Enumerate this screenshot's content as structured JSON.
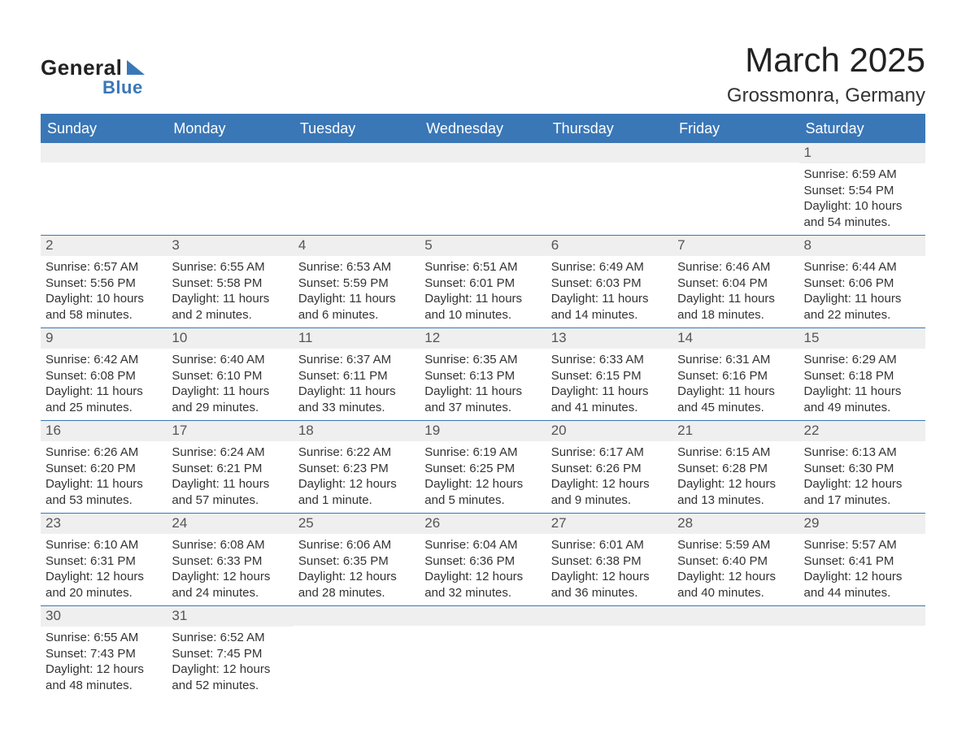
{
  "logo": {
    "text1": "General",
    "text2": "Blue"
  },
  "title": "March 2025",
  "location": "Grossmonra, Germany",
  "colors": {
    "brand_blue": "#3a77b7",
    "header_row_bg": "#efefef",
    "text": "#333333",
    "page_bg": "#ffffff"
  },
  "layout": {
    "columns": 7,
    "weeks": 6,
    "daynum_bg": "#efefef",
    "week_divider_color": "#3a77b7"
  },
  "weekdays": [
    "Sunday",
    "Monday",
    "Tuesday",
    "Wednesday",
    "Thursday",
    "Friday",
    "Saturday"
  ],
  "labels": {
    "sunrise": "Sunrise:",
    "sunset": "Sunset:",
    "daylight": "Daylight:"
  },
  "weeks": [
    [
      {
        "day": "",
        "sunrise": "",
        "sunset": "",
        "daylight": ""
      },
      {
        "day": "",
        "sunrise": "",
        "sunset": "",
        "daylight": ""
      },
      {
        "day": "",
        "sunrise": "",
        "sunset": "",
        "daylight": ""
      },
      {
        "day": "",
        "sunrise": "",
        "sunset": "",
        "daylight": ""
      },
      {
        "day": "",
        "sunrise": "",
        "sunset": "",
        "daylight": ""
      },
      {
        "day": "",
        "sunrise": "",
        "sunset": "",
        "daylight": ""
      },
      {
        "day": "1",
        "sunrise": "6:59 AM",
        "sunset": "5:54 PM",
        "daylight": "10 hours and 54 minutes."
      }
    ],
    [
      {
        "day": "2",
        "sunrise": "6:57 AM",
        "sunset": "5:56 PM",
        "daylight": "10 hours and 58 minutes."
      },
      {
        "day": "3",
        "sunrise": "6:55 AM",
        "sunset": "5:58 PM",
        "daylight": "11 hours and 2 minutes."
      },
      {
        "day": "4",
        "sunrise": "6:53 AM",
        "sunset": "5:59 PM",
        "daylight": "11 hours and 6 minutes."
      },
      {
        "day": "5",
        "sunrise": "6:51 AM",
        "sunset": "6:01 PM",
        "daylight": "11 hours and 10 minutes."
      },
      {
        "day": "6",
        "sunrise": "6:49 AM",
        "sunset": "6:03 PM",
        "daylight": "11 hours and 14 minutes."
      },
      {
        "day": "7",
        "sunrise": "6:46 AM",
        "sunset": "6:04 PM",
        "daylight": "11 hours and 18 minutes."
      },
      {
        "day": "8",
        "sunrise": "6:44 AM",
        "sunset": "6:06 PM",
        "daylight": "11 hours and 22 minutes."
      }
    ],
    [
      {
        "day": "9",
        "sunrise": "6:42 AM",
        "sunset": "6:08 PM",
        "daylight": "11 hours and 25 minutes."
      },
      {
        "day": "10",
        "sunrise": "6:40 AM",
        "sunset": "6:10 PM",
        "daylight": "11 hours and 29 minutes."
      },
      {
        "day": "11",
        "sunrise": "6:37 AM",
        "sunset": "6:11 PM",
        "daylight": "11 hours and 33 minutes."
      },
      {
        "day": "12",
        "sunrise": "6:35 AM",
        "sunset": "6:13 PM",
        "daylight": "11 hours and 37 minutes."
      },
      {
        "day": "13",
        "sunrise": "6:33 AM",
        "sunset": "6:15 PM",
        "daylight": "11 hours and 41 minutes."
      },
      {
        "day": "14",
        "sunrise": "6:31 AM",
        "sunset": "6:16 PM",
        "daylight": "11 hours and 45 minutes."
      },
      {
        "day": "15",
        "sunrise": "6:29 AM",
        "sunset": "6:18 PM",
        "daylight": "11 hours and 49 minutes."
      }
    ],
    [
      {
        "day": "16",
        "sunrise": "6:26 AM",
        "sunset": "6:20 PM",
        "daylight": "11 hours and 53 minutes."
      },
      {
        "day": "17",
        "sunrise": "6:24 AM",
        "sunset": "6:21 PM",
        "daylight": "11 hours and 57 minutes."
      },
      {
        "day": "18",
        "sunrise": "6:22 AM",
        "sunset": "6:23 PM",
        "daylight": "12 hours and 1 minute."
      },
      {
        "day": "19",
        "sunrise": "6:19 AM",
        "sunset": "6:25 PM",
        "daylight": "12 hours and 5 minutes."
      },
      {
        "day": "20",
        "sunrise": "6:17 AM",
        "sunset": "6:26 PM",
        "daylight": "12 hours and 9 minutes."
      },
      {
        "day": "21",
        "sunrise": "6:15 AM",
        "sunset": "6:28 PM",
        "daylight": "12 hours and 13 minutes."
      },
      {
        "day": "22",
        "sunrise": "6:13 AM",
        "sunset": "6:30 PM",
        "daylight": "12 hours and 17 minutes."
      }
    ],
    [
      {
        "day": "23",
        "sunrise": "6:10 AM",
        "sunset": "6:31 PM",
        "daylight": "12 hours and 20 minutes."
      },
      {
        "day": "24",
        "sunrise": "6:08 AM",
        "sunset": "6:33 PM",
        "daylight": "12 hours and 24 minutes."
      },
      {
        "day": "25",
        "sunrise": "6:06 AM",
        "sunset": "6:35 PM",
        "daylight": "12 hours and 28 minutes."
      },
      {
        "day": "26",
        "sunrise": "6:04 AM",
        "sunset": "6:36 PM",
        "daylight": "12 hours and 32 minutes."
      },
      {
        "day": "27",
        "sunrise": "6:01 AM",
        "sunset": "6:38 PM",
        "daylight": "12 hours and 36 minutes."
      },
      {
        "day": "28",
        "sunrise": "5:59 AM",
        "sunset": "6:40 PM",
        "daylight": "12 hours and 40 minutes."
      },
      {
        "day": "29",
        "sunrise": "5:57 AM",
        "sunset": "6:41 PM",
        "daylight": "12 hours and 44 minutes."
      }
    ],
    [
      {
        "day": "30",
        "sunrise": "6:55 AM",
        "sunset": "7:43 PM",
        "daylight": "12 hours and 48 minutes."
      },
      {
        "day": "31",
        "sunrise": "6:52 AM",
        "sunset": "7:45 PM",
        "daylight": "12 hours and 52 minutes."
      },
      {
        "day": "",
        "sunrise": "",
        "sunset": "",
        "daylight": ""
      },
      {
        "day": "",
        "sunrise": "",
        "sunset": "",
        "daylight": ""
      },
      {
        "day": "",
        "sunrise": "",
        "sunset": "",
        "daylight": ""
      },
      {
        "day": "",
        "sunrise": "",
        "sunset": "",
        "daylight": ""
      },
      {
        "day": "",
        "sunrise": "",
        "sunset": "",
        "daylight": ""
      }
    ]
  ]
}
